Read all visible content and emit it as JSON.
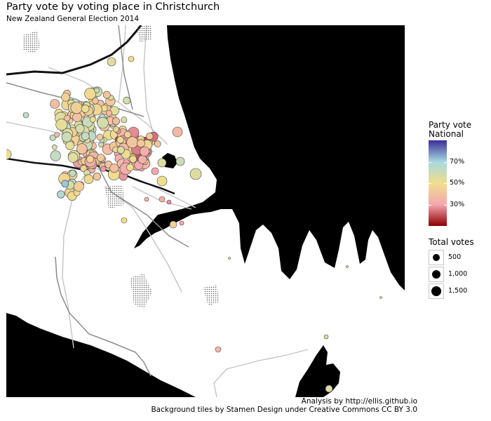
{
  "header": {
    "title": "Party vote by voting place in Christchurch",
    "subtitle": "New Zealand General Election 2014"
  },
  "legend": {
    "color_title_1": "Party vote",
    "color_title_2": "National",
    "color_ticks": [
      {
        "value": 0.7,
        "label": "70%"
      },
      {
        "value": 0.5,
        "label": "50%"
      },
      {
        "value": 0.3,
        "label": "30%"
      }
    ],
    "size_title": "Total votes",
    "size_items": [
      {
        "value": 500,
        "label": "500"
      },
      {
        "value": 1000,
        "label": "1,000"
      },
      {
        "value": 1500,
        "label": "1,500"
      }
    ],
    "colors": [
      "#8b0000",
      "#f4a7b0",
      "#f0df8c",
      "#a8d8e0",
      "#3a2e9a"
    ]
  },
  "captions": {
    "analysis": "Analysis by http://ellis.github.io",
    "tiles": "Background tiles by Stamen Design under Creative Commons CC BY 3.0"
  }
}
